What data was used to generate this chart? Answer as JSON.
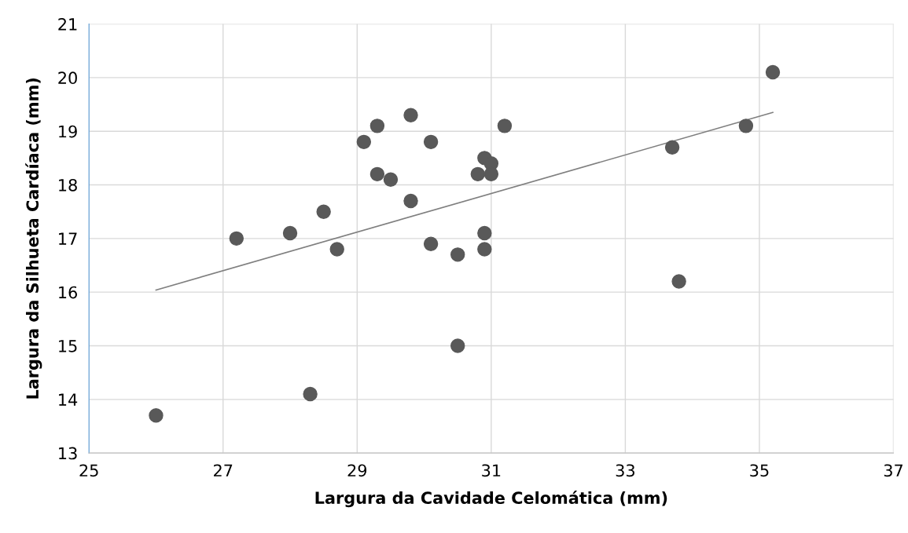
{
  "chart_data": {
    "type": "scatter",
    "xlabel": "Largura da Cavidade Celomática (mm)",
    "ylabel": "Largura da Silhueta Cardíaca (mm)",
    "xlim": [
      25,
      37
    ],
    "xticks": [
      25,
      27,
      29,
      31,
      33,
      35,
      37
    ],
    "ylim": [
      13,
      21
    ],
    "yticks": [
      13,
      14,
      15,
      16,
      17,
      18,
      19,
      20,
      21
    ],
    "grid": true,
    "series": [
      {
        "marker": "circle",
        "color": "#595959",
        "x": [
          26.0,
          27.2,
          28.0,
          28.5,
          28.3,
          28.7,
          29.1,
          29.3,
          29.3,
          29.5,
          29.8,
          29.8,
          30.1,
          30.1,
          30.5,
          30.5,
          30.8,
          30.9,
          31.0,
          31.0,
          30.9,
          30.9,
          31.2,
          33.7,
          33.8,
          34.8,
          35.2
        ],
        "values": [
          13.7,
          17.0,
          17.1,
          17.5,
          14.1,
          16.8,
          18.8,
          19.1,
          18.2,
          18.1,
          19.3,
          17.7,
          18.8,
          16.9,
          16.7,
          15.0,
          18.2,
          18.5,
          18.4,
          18.2,
          17.1,
          16.8,
          19.1,
          18.7,
          16.2,
          19.1,
          20.1
        ]
      },
      {
        "type": "line",
        "marker": "none",
        "color": "#7f7f7f",
        "x": [
          26.0,
          35.2
        ],
        "values": [
          16.04,
          19.35
        ]
      }
    ]
  }
}
